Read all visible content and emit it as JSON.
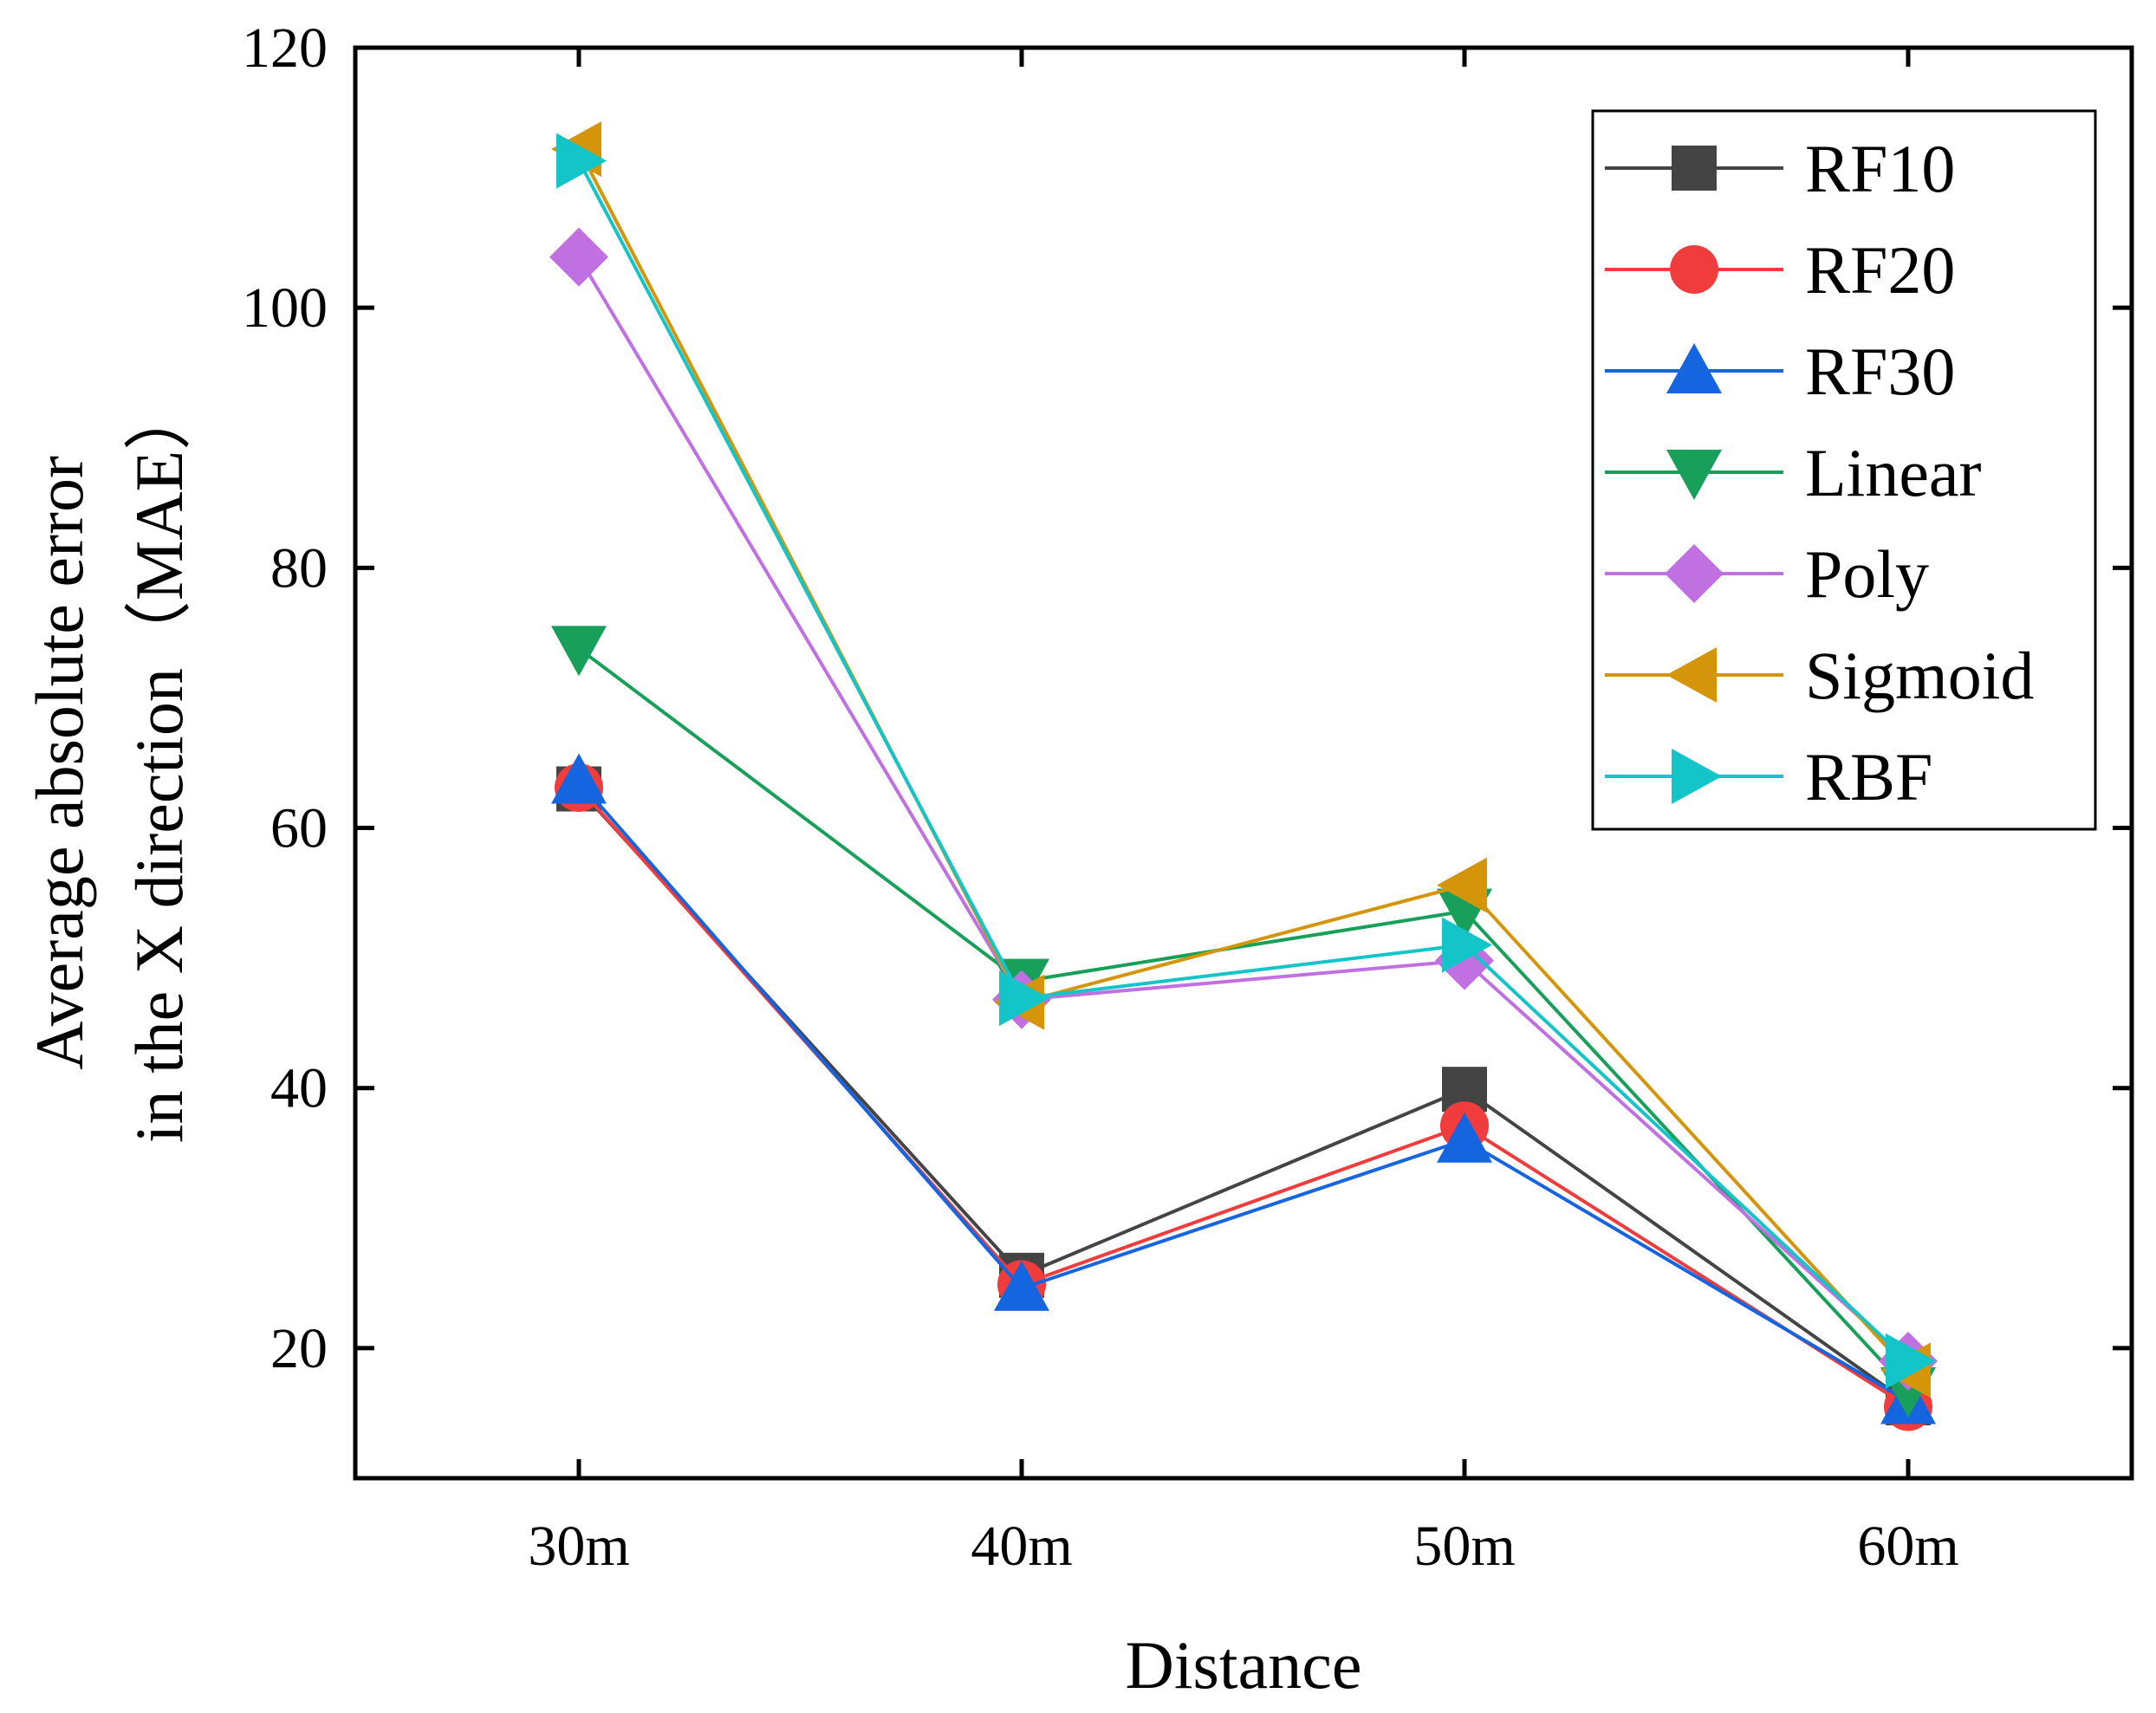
{
  "chart_data": {
    "type": "line",
    "title": "",
    "xlabel": "Distance",
    "ylabel_line1": "Average absolute error",
    "ylabel_line2": "in the X direction（MAE）",
    "categories": [
      "30m",
      "40m",
      "50m",
      "60m"
    ],
    "ylim": [
      10,
      120
    ],
    "yticks": [
      20,
      40,
      60,
      80,
      100,
      120
    ],
    "grid": false,
    "legend_position": "top-right",
    "series": [
      {
        "name": "RF10",
        "values": [
          63.0,
          25.6,
          39.9,
          15.8
        ],
        "color": "#444444",
        "marker": "square"
      },
      {
        "name": "RF20",
        "values": [
          63.1,
          24.9,
          37.1,
          15.5
        ],
        "color": "#f03c3c",
        "marker": "circle"
      },
      {
        "name": "RF30",
        "values": [
          63.6,
          24.6,
          36.0,
          15.9
        ],
        "color": "#1565e0",
        "marker": "triangle-up"
      },
      {
        "name": "Linear",
        "values": [
          73.8,
          48.2,
          53.6,
          16.8
        ],
        "color": "#18a05a",
        "marker": "triangle-down"
      },
      {
        "name": "Poly",
        "values": [
          103.9,
          46.8,
          49.8,
          19.0
        ],
        "color": "#c070e0",
        "marker": "diamond"
      },
      {
        "name": "Sigmoid",
        "values": [
          112.2,
          46.6,
          55.6,
          18.3
        ],
        "color": "#d4950a",
        "marker": "triangle-left"
      },
      {
        "name": "RBF",
        "values": [
          111.3,
          46.9,
          51.0,
          19.0
        ],
        "color": "#13c4c8",
        "marker": "triangle-right"
      }
    ]
  }
}
